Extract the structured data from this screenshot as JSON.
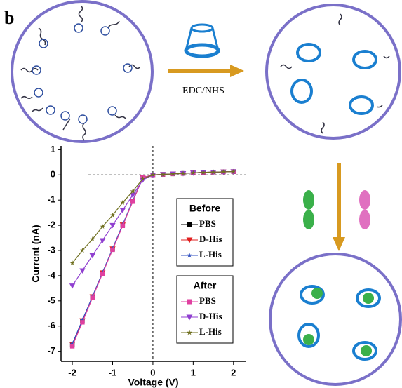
{
  "panel_label": "b",
  "reaction_label": "EDC/NHS",
  "chart_data": {
    "type": "line",
    "xlabel": "Voltage (V)",
    "ylabel": "Current (nA)",
    "x": [
      -2,
      -1.75,
      -1.5,
      -1.25,
      -1,
      -0.75,
      -0.5,
      -0.25,
      0,
      0.25,
      0.5,
      0.75,
      1,
      1.25,
      1.5,
      1.75,
      2
    ],
    "xlim": [
      -2.28,
      2.3
    ],
    "xticks": [
      -2,
      -1,
      0,
      1,
      2
    ],
    "ylim": [
      -7.4,
      1.15
    ],
    "yticks": [
      -7,
      -6,
      -5,
      -4,
      -3,
      -2,
      -1,
      0,
      1
    ],
    "legend_groups": [
      "Before",
      "After"
    ],
    "series": [
      {
        "name": "PBS",
        "group": "Before",
        "color": "#000000",
        "marker": "square",
        "values": [
          -6.75,
          -5.8,
          -4.85,
          -3.9,
          -2.95,
          -2.0,
          -1.05,
          -0.1,
          0,
          0.02,
          0.04,
          0.06,
          0.08,
          0.1,
          0.11,
          0.12,
          0.13
        ]
      },
      {
        "name": "D-His",
        "group": "Before",
        "color": "#e02020",
        "marker": "triangle",
        "values": [
          -6.72,
          -5.78,
          -4.83,
          -3.88,
          -2.93,
          -1.98,
          -1.03,
          -0.1,
          0,
          0.02,
          0.04,
          0.06,
          0.08,
          0.1,
          0.11,
          0.12,
          0.13
        ]
      },
      {
        "name": "L-His",
        "group": "Before",
        "color": "#3050c0",
        "marker": "star",
        "values": [
          -6.7,
          -5.76,
          -4.82,
          -3.87,
          -2.92,
          -1.97,
          -1.02,
          -0.1,
          0,
          0.02,
          0.04,
          0.06,
          0.08,
          0.1,
          0.11,
          0.12,
          0.13
        ]
      },
      {
        "name": "PBS",
        "group": "After",
        "color": "#e040a0",
        "marker": "square",
        "values": [
          -6.8,
          -5.85,
          -4.88,
          -3.92,
          -2.97,
          -2.02,
          -1.06,
          -0.1,
          0,
          0.02,
          0.04,
          0.06,
          0.08,
          0.1,
          0.11,
          0.12,
          0.13
        ]
      },
      {
        "name": "D-His",
        "group": "After",
        "color": "#9040d0",
        "marker": "triangle",
        "values": [
          -4.4,
          -3.8,
          -3.2,
          -2.6,
          -2.0,
          -1.4,
          -0.8,
          -0.2,
          0,
          0.02,
          0.04,
          0.06,
          0.08,
          0.1,
          0.11,
          0.12,
          0.13
        ]
      },
      {
        "name": "L-His",
        "group": "After",
        "color": "#707020",
        "marker": "star",
        "values": [
          -3.5,
          -3.0,
          -2.55,
          -2.05,
          -1.6,
          -1.1,
          -0.65,
          -0.15,
          0,
          0.02,
          0.04,
          0.06,
          0.08,
          0.1,
          0.11,
          0.12,
          0.13
        ]
      }
    ]
  }
}
